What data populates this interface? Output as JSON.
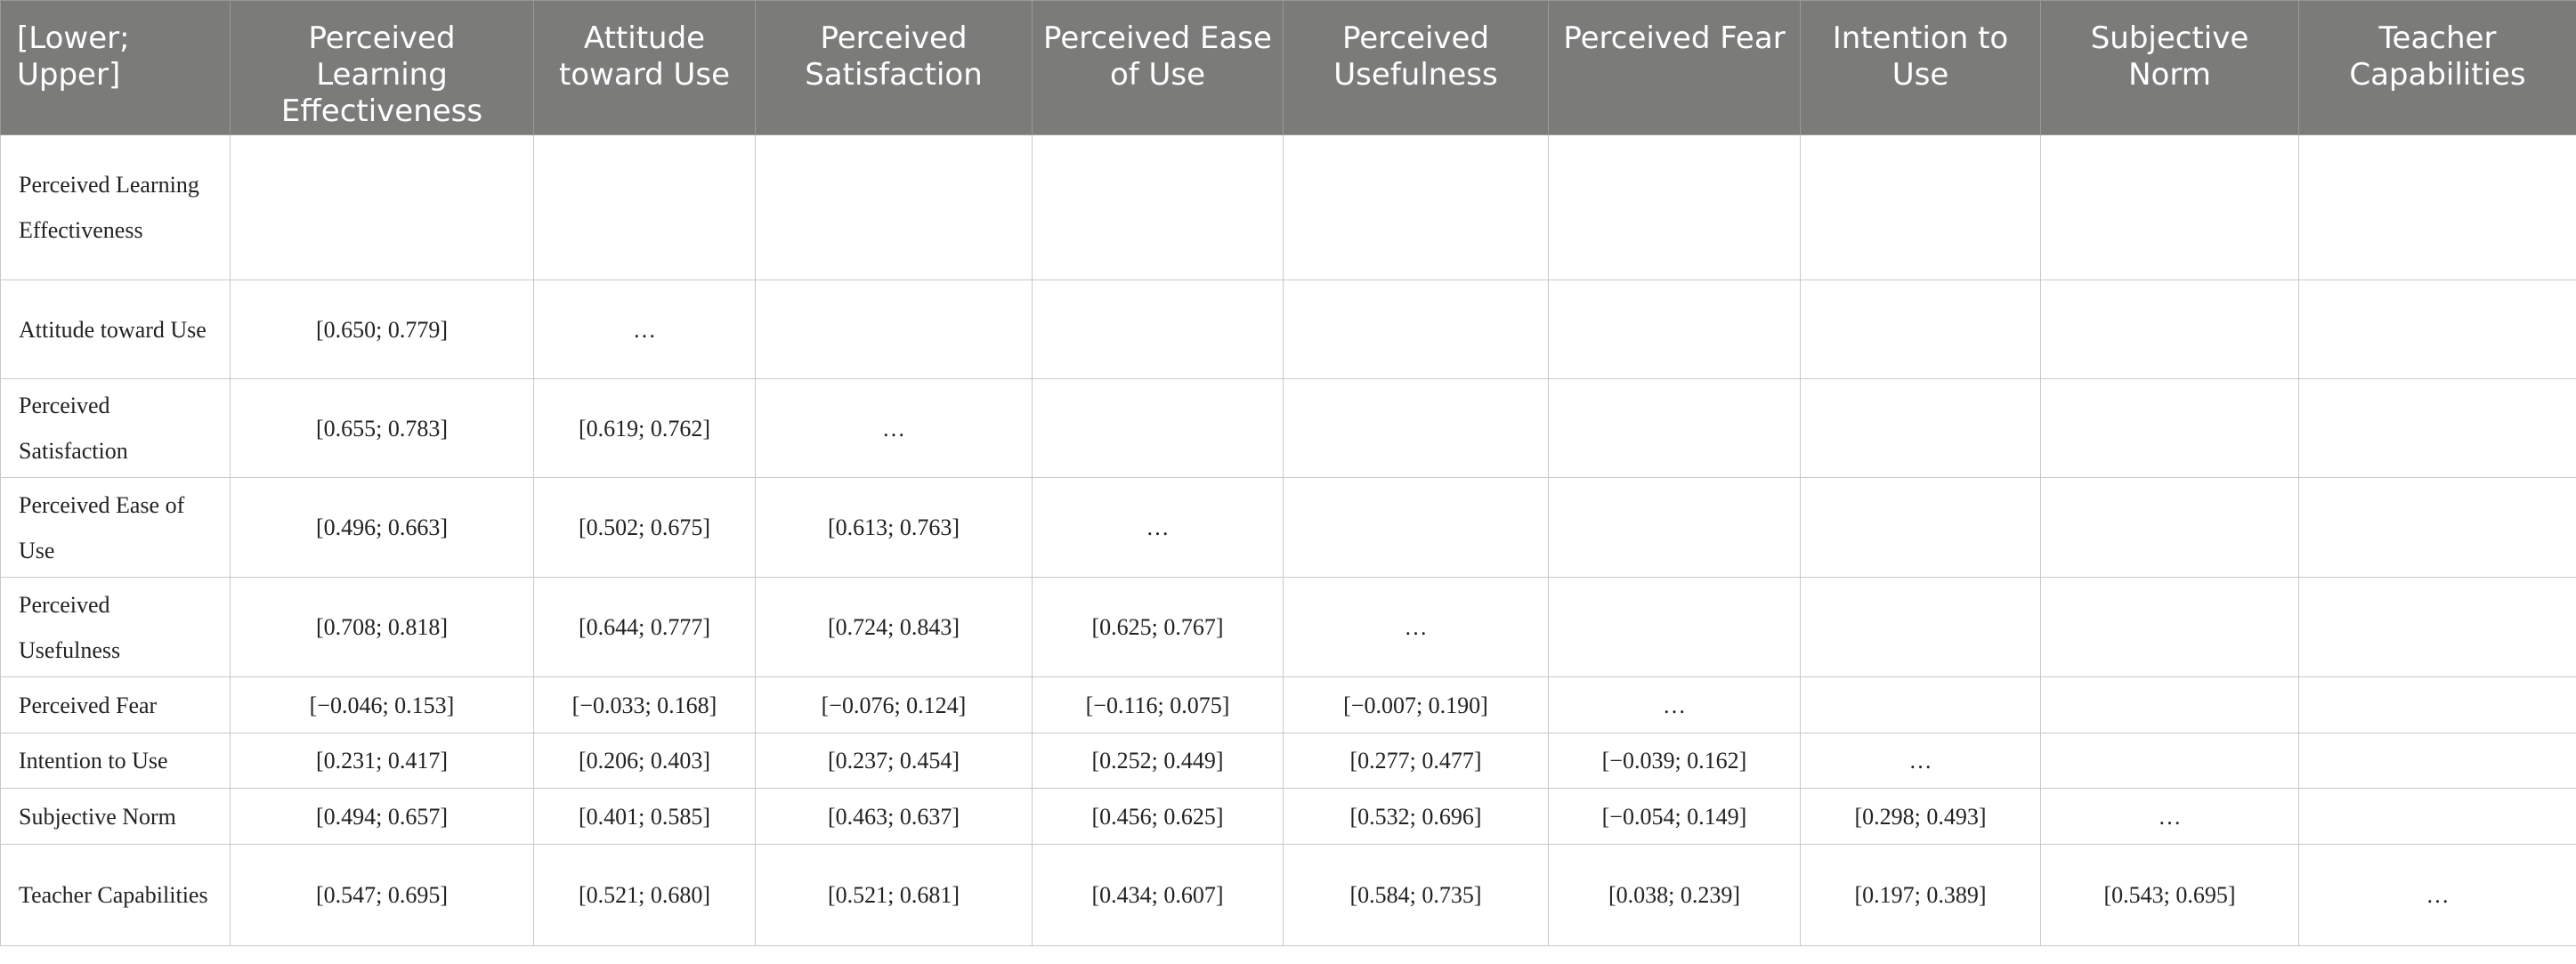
{
  "table": {
    "corner": "[Lower; Upper]",
    "columns": [
      "Perceived Learning Effectiveness",
      "Attitude toward Use",
      "Perceived Satisfaction",
      "Perceived Ease of Use",
      "Perceived Usefulness",
      "Perceived Fear",
      "Intention to Use",
      "Subjective Norm",
      "Teacher Capabilities"
    ],
    "rows": [
      {
        "label": "Perceived Learning Effectiveness",
        "cells": [
          "",
          "",
          "",
          "",
          "",
          "",
          "",
          "",
          ""
        ]
      },
      {
        "label": "Attitude toward Use",
        "cells": [
          "[0.650; 0.779]",
          "…",
          "",
          "",
          "",
          "",
          "",
          "",
          ""
        ]
      },
      {
        "label": "Perceived Satisfaction",
        "cells": [
          "[0.655; 0.783]",
          "[0.619; 0.762]",
          "…",
          "",
          "",
          "",
          "",
          "",
          ""
        ]
      },
      {
        "label": "Perceived Ease of Use",
        "cells": [
          "[0.496; 0.663]",
          "[0.502; 0.675]",
          "[0.613; 0.763]",
          "…",
          "",
          "",
          "",
          "",
          ""
        ]
      },
      {
        "label": "Perceived Usefulness",
        "cells": [
          "[0.708; 0.818]",
          "[0.644; 0.777]",
          "[0.724; 0.843]",
          "[0.625; 0.767]",
          "…",
          "",
          "",
          "",
          ""
        ]
      },
      {
        "label": "Perceived Fear",
        "cells": [
          "[−0.046; 0.153]",
          "[−0.033; 0.168]",
          "[−0.076; 0.124]",
          "[−0.116; 0.075]",
          "[−0.007; 0.190]",
          "…",
          "",
          "",
          ""
        ]
      },
      {
        "label": "Intention to Use",
        "cells": [
          "[0.231; 0.417]",
          "[0.206; 0.403]",
          "[0.237; 0.454]",
          "[0.252; 0.449]",
          "[0.277; 0.477]",
          "[−0.039; 0.162]",
          "…",
          "",
          ""
        ]
      },
      {
        "label": "Subjective Norm",
        "cells": [
          "[0.494; 0.657]",
          "[0.401; 0.585]",
          "[0.463; 0.637]",
          "[0.456; 0.625]",
          "[0.532; 0.696]",
          "[−0.054; 0.149]",
          "[0.298; 0.493]",
          "…",
          ""
        ]
      },
      {
        "label": "Teacher Capabilities",
        "cells": [
          "[0.547; 0.695]",
          "[0.521; 0.680]",
          "[0.521; 0.681]",
          "[0.434; 0.607]",
          "[0.584; 0.735]",
          "[0.038; 0.239]",
          "[0.197; 0.389]",
          "[0.543; 0.695]",
          "…"
        ]
      }
    ]
  }
}
